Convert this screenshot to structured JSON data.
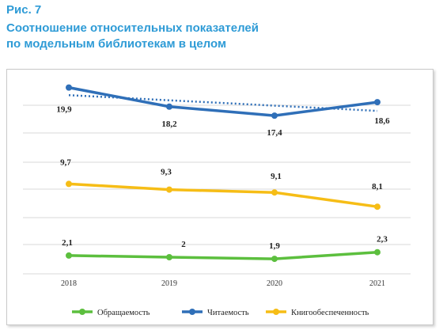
{
  "figure": {
    "label": "Рис. 7",
    "title_line1": "Соотношение относительных показателей",
    "title_line2": "по модельным библиотекам в целом"
  },
  "colors": {
    "title": "#2e9bd6",
    "obrash": "#5cbf3e",
    "chit": "#2f6fb8",
    "knigo": "#f6bd16",
    "grid": "#d9d9d9"
  },
  "chart_data": {
    "type": "line",
    "categories": [
      "2018",
      "2019",
      "2020",
      "2021"
    ],
    "series": [
      {
        "name": "Обращаемость",
        "values": [
          2.1,
          2,
          1.9,
          2.3
        ],
        "labels": [
          "2,1",
          "2",
          "1,9",
          "2,3"
        ],
        "color": "#5cbf3e"
      },
      {
        "name": "Читаемость",
        "values": [
          19.9,
          18.2,
          17.4,
          18.6
        ],
        "labels": [
          "19,9",
          "18,2",
          "17,4",
          "18,6"
        ],
        "color": "#2f6fb8",
        "trendline": true
      },
      {
        "name": "Книгообеспеченность",
        "values": [
          9.7,
          9.3,
          9.1,
          8.1
        ],
        "labels": [
          "9,7",
          "9,3",
          "9,1",
          "8,1"
        ],
        "color": "#f6bd16"
      }
    ],
    "legend_position": "bottom",
    "grid": true
  }
}
